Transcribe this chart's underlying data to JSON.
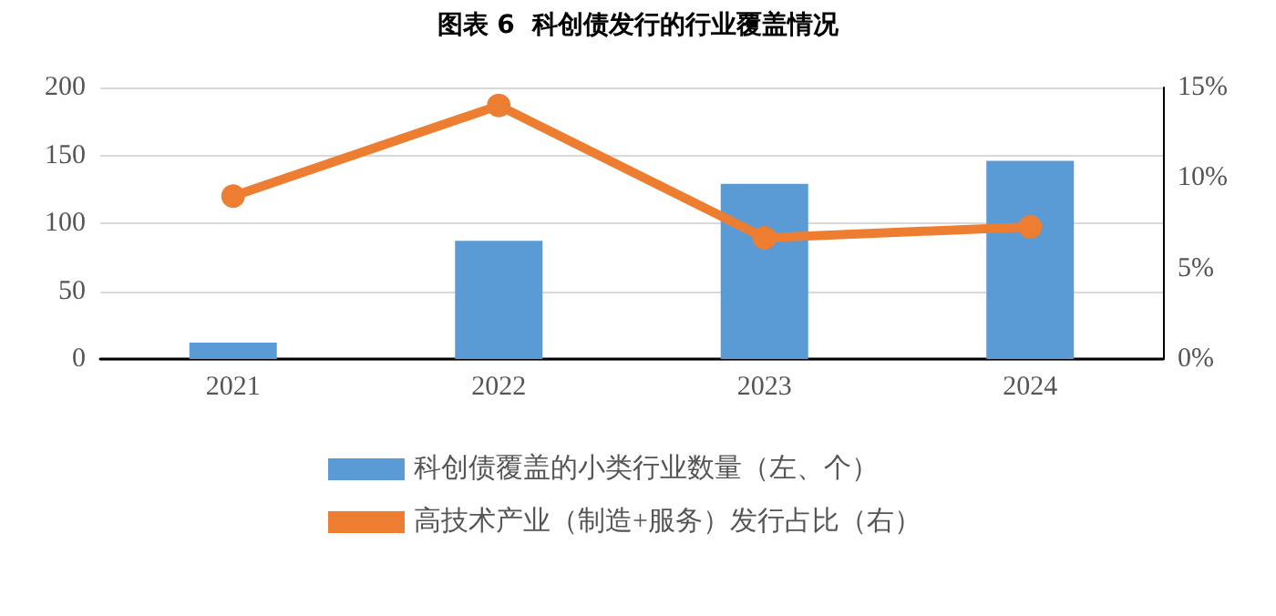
{
  "chart_data": {
    "type": "bar",
    "title": "图表 6  科创债发行的行业覆盖情况",
    "categories": [
      "2021",
      "2022",
      "2023",
      "2024"
    ],
    "series": [
      {
        "name": "科创债覆盖的小类行业数量（左、个）",
        "color": "#5b9bd5",
        "values": [
          12,
          87,
          129,
          146
        ]
      },
      {
        "name": "高技术产业（制造+服务）发行占比（右）",
        "type": "line",
        "axis": "y2",
        "color": "#ed7d31",
        "values": [
          9.0,
          14.0,
          6.7,
          7.3
        ],
        "marker": "circle"
      }
    ],
    "ylim": [
      0,
      200
    ],
    "yticks": [
      0,
      50,
      100,
      150,
      200
    ],
    "y2lim": [
      0,
      15
    ],
    "y2ticks": [
      {
        "value": 0,
        "label": "0%"
      },
      {
        "value": 5,
        "label": "5%"
      },
      {
        "value": 10,
        "label": "10%"
      },
      {
        "value": 15,
        "label": "15%"
      }
    ],
    "grid": "y",
    "legend": "bottom"
  }
}
